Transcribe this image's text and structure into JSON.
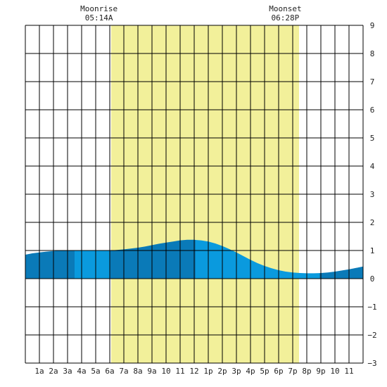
{
  "chart_data": {
    "type": "area",
    "title": "",
    "xlabel": "",
    "ylabel": "",
    "x_range_hours": [
      0,
      24
    ],
    "ylim": [
      -3,
      9
    ],
    "y_ticks": [
      -3,
      -2,
      -1,
      0,
      1,
      2,
      3,
      4,
      5,
      6,
      7,
      8,
      9
    ],
    "x_tick_labels": [
      "1a",
      "2a",
      "3a",
      "4a",
      "5a",
      "6a",
      "7a",
      "8a",
      "9a",
      "10",
      "11",
      "12",
      "1p",
      "2p",
      "3p",
      "4p",
      "5p",
      "6p",
      "7p",
      "8p",
      "9p",
      "10",
      "11"
    ],
    "moon": {
      "rise_label": "Moonrise",
      "rise_time": "05:14A",
      "rise_hour": 5.23,
      "set_label": "Moonset",
      "set_time": "06:28P",
      "set_hour": 18.47
    },
    "daylight_hours": [
      6.1,
      19.45
    ],
    "grid": true,
    "series": [
      {
        "x": [
          0,
          0.5,
          1,
          1.5,
          2,
          2.5,
          3,
          3.5,
          4,
          4.5,
          5,
          5.5,
          6,
          6.5,
          7,
          7.5,
          8,
          8.5,
          9,
          9.5,
          10,
          10.5,
          11,
          11.5,
          12,
          12.5,
          13,
          13.5,
          14,
          14.5,
          15,
          15.5,
          16,
          16.5,
          17,
          17.5,
          18,
          18.5,
          19,
          19.5,
          20,
          20.5,
          21,
          21.5,
          22,
          22.5,
          23,
          23.5,
          24
        ],
        "values": [
          0.85,
          0.9,
          0.93,
          0.96,
          0.98,
          1.0,
          1.0,
          1.0,
          1.0,
          1.0,
          1.0,
          1.0,
          1.0,
          1.02,
          1.04,
          1.07,
          1.1,
          1.14,
          1.19,
          1.24,
          1.28,
          1.32,
          1.36,
          1.38,
          1.38,
          1.36,
          1.32,
          1.25,
          1.16,
          1.05,
          0.93,
          0.8,
          0.67,
          0.55,
          0.45,
          0.37,
          0.3,
          0.25,
          0.22,
          0.2,
          0.19,
          0.19,
          0.2,
          0.22,
          0.25,
          0.29,
          0.33,
          0.38,
          0.43
        ]
      }
    ],
    "shade_bands": [
      {
        "start_hour": 0,
        "end_hour": 3.5,
        "shade": "dark"
      },
      {
        "start_hour": 3.5,
        "end_hour": 6.0,
        "shade": "light"
      },
      {
        "start_hour": 6.0,
        "end_hour": 12.1,
        "shade": "dark"
      },
      {
        "start_hour": 12.1,
        "end_hour": 20.9,
        "shade": "light"
      },
      {
        "start_hour": 20.9,
        "end_hour": 24,
        "shade": "dark"
      }
    ],
    "colors": {
      "daylight": "#f2f09a",
      "tide_light": "#0a9ade",
      "tide_dark": "#0a7ab8",
      "grid": "#000000"
    }
  }
}
